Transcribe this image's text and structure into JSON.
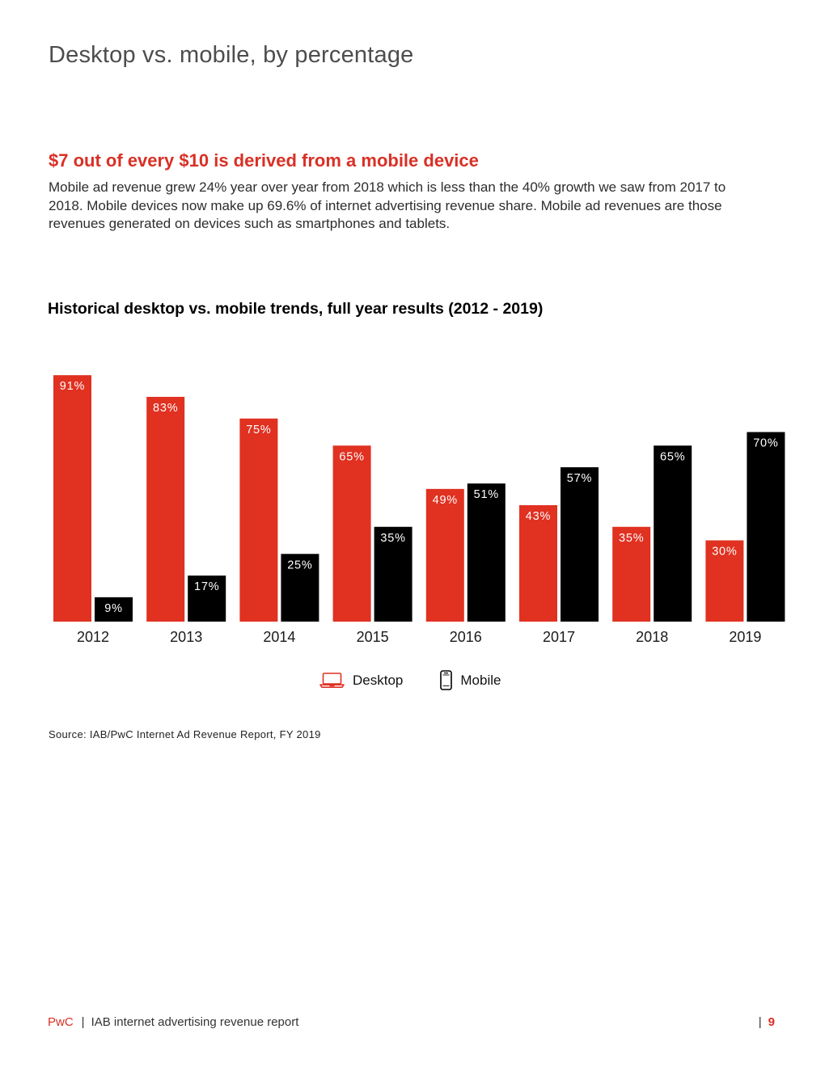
{
  "page_title": "Desktop vs. mobile, by percentage",
  "highlight": "$7 out of every $10 is derived from a mobile device",
  "body_text": "Mobile ad revenue grew 24% year over year from 2018 which is less than the 40% growth we saw from 2017 to 2018. Mobile devices now make up 69.6% of internet advertising revenue share. Mobile ad revenues are those revenues generated on devices such as smartphones and tablets.",
  "colors": {
    "accent": "#d93025",
    "desktop": "#e03121",
    "mobile": "#000000"
  },
  "chart_data": {
    "type": "bar",
    "title": "Historical desktop vs. mobile trends, full year results (2012 - 2019)",
    "categories": [
      "2012",
      "2013",
      "2014",
      "2015",
      "2016",
      "2017",
      "2018",
      "2019"
    ],
    "series": [
      {
        "name": "Desktop",
        "values": [
          91,
          83,
          75,
          65,
          49,
          43,
          35,
          30
        ],
        "labels": [
          "91%",
          "83%",
          "75%",
          "65%",
          "49%",
          "43%",
          "35%",
          "30%"
        ]
      },
      {
        "name": "Mobile",
        "values": [
          9,
          17,
          25,
          35,
          51,
          57,
          65,
          70
        ],
        "labels": [
          "9%",
          "17%",
          "25%",
          "35%",
          "51%",
          "57%",
          "65%",
          "70%"
        ]
      }
    ],
    "xlabel": "",
    "ylabel": "",
    "ylim": [
      0,
      100
    ],
    "grid": false,
    "legend": "bottom-center"
  },
  "legend": {
    "desktop_label": "Desktop",
    "desktop_icon": "laptop-icon",
    "mobile_label": "Mobile",
    "mobile_icon": "smartphone-icon"
  },
  "source": "Source: IAB/PwC Internet Ad Revenue Report, FY 2019",
  "footer": {
    "brand": "PwC",
    "separator": "|",
    "report_name": "IAB internet advertising revenue report",
    "page_separator": "|",
    "page_number": "9"
  }
}
